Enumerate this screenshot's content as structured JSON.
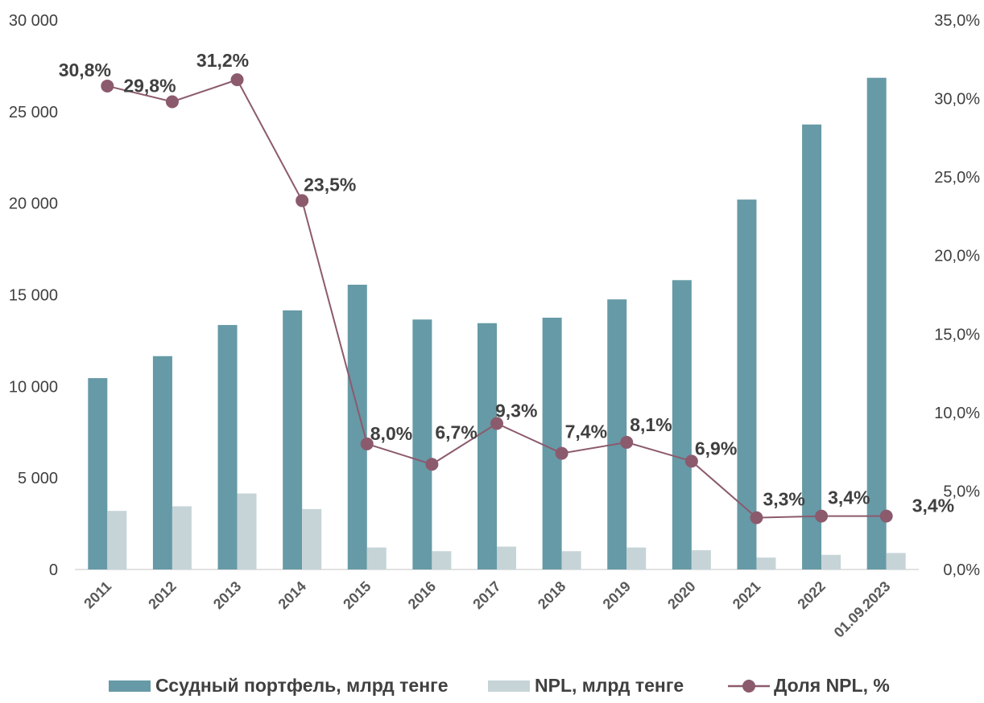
{
  "chart_data": {
    "type": "bar",
    "categories": [
      "2011",
      "2012",
      "2013",
      "2014",
      "2015",
      "2016",
      "2017",
      "2018",
      "2019",
      "2020",
      "2021",
      "2022",
      "01.09.2023"
    ],
    "series": [
      {
        "name": "Ссудный портфель, млрд тенге",
        "type": "bar",
        "axis": "left",
        "color": "#669aa6",
        "values": [
          10450,
          11650,
          13350,
          14150,
          15550,
          13650,
          13450,
          13750,
          14750,
          15800,
          20200,
          24300,
          26850
        ]
      },
      {
        "name": "NPL, млрд тенге",
        "type": "bar",
        "axis": "left",
        "color": "#c6d4d8",
        "values": [
          3200,
          3450,
          4150,
          3300,
          1200,
          1000,
          1250,
          1000,
          1200,
          1050,
          650,
          800,
          900
        ]
      },
      {
        "name": "Доля NPL, %",
        "type": "line",
        "axis": "right",
        "color": "#8c5a6d",
        "values": [
          30.8,
          29.8,
          31.2,
          23.5,
          8.0,
          6.7,
          9.3,
          7.4,
          8.1,
          6.9,
          3.3,
          3.4,
          3.4
        ],
        "labels": [
          "30,8%",
          "29,8%",
          "31,2%",
          "23,5%",
          "8,0%",
          "6,7%",
          "9,3%",
          "7,4%",
          "8,1%",
          "6,9%",
          "3,3%",
          "3,4%",
          "3,4%"
        ]
      }
    ],
    "y_left": {
      "ylim": [
        0,
        30000
      ],
      "ticks": [
        0,
        5000,
        10000,
        15000,
        20000,
        25000,
        30000
      ],
      "tick_labels": [
        "0",
        "5 000",
        "10 000",
        "15 000",
        "20 000",
        "25 000",
        "30 000"
      ]
    },
    "y_right": {
      "ylim": [
        0,
        35
      ],
      "ticks": [
        0,
        5,
        10,
        15,
        20,
        25,
        30,
        35
      ],
      "tick_labels": [
        "0,0%",
        "5,0%",
        "10,0%",
        "15,0%",
        "20,0%",
        "25,0%",
        "30,0%",
        "35,0%"
      ]
    },
    "grid": false,
    "legend": "bottom",
    "title": "",
    "xlabel": "",
    "ylabel": ""
  }
}
